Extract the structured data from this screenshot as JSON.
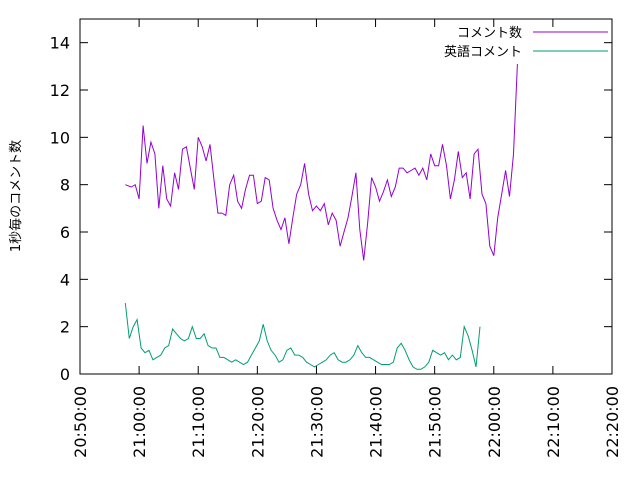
{
  "chart_data": {
    "type": "line",
    "title": "",
    "xlabel": "",
    "ylabel": "1秒毎のコメント数",
    "xlim": [
      "20:50:00",
      "22:20:00"
    ],
    "ylim": [
      0,
      15
    ],
    "x_ticks": [
      "20:50:00",
      "21:00:00",
      "21:10:00",
      "21:20:00",
      "21:30:00",
      "21:40:00",
      "21:50:00",
      "22:00:00",
      "22:10:00",
      "22:20:00"
    ],
    "y_ticks": [
      "0",
      "2",
      "4",
      "6",
      "8",
      "10",
      "12",
      "14"
    ],
    "grid": false,
    "legend_position": "top-right",
    "series": [
      {
        "name": "コメント数",
        "color": "#9400d3",
        "points": [
          [
            "20:57:40",
            8.0
          ],
          [
            "20:58:40",
            7.9
          ],
          [
            "20:59:20",
            8.0
          ],
          [
            "21:00:00",
            7.4
          ],
          [
            "21:00:40",
            10.5
          ],
          [
            "21:01:20",
            8.9
          ],
          [
            "21:02:00",
            9.8
          ],
          [
            "21:02:40",
            9.3
          ],
          [
            "21:03:20",
            7.0
          ],
          [
            "21:04:00",
            8.8
          ],
          [
            "21:04:40",
            7.4
          ],
          [
            "21:05:20",
            7.1
          ],
          [
            "21:06:00",
            8.5
          ],
          [
            "21:06:40",
            7.8
          ],
          [
            "21:07:20",
            9.5
          ],
          [
            "21:08:00",
            9.6
          ],
          [
            "21:08:40",
            8.7
          ],
          [
            "21:09:20",
            7.8
          ],
          [
            "21:10:00",
            10.0
          ],
          [
            "21:10:40",
            9.6
          ],
          [
            "21:11:20",
            9.0
          ],
          [
            "21:12:00",
            9.7
          ],
          [
            "21:12:40",
            8.2
          ],
          [
            "21:13:20",
            6.8
          ],
          [
            "21:14:00",
            6.8
          ],
          [
            "21:14:40",
            6.7
          ],
          [
            "21:15:20",
            8.0
          ],
          [
            "21:16:00",
            8.4
          ],
          [
            "21:16:40",
            7.3
          ],
          [
            "21:17:20",
            7.0
          ],
          [
            "21:18:00",
            7.8
          ],
          [
            "21:18:40",
            8.4
          ],
          [
            "21:19:20",
            8.4
          ],
          [
            "21:20:00",
            7.2
          ],
          [
            "21:20:40",
            7.3
          ],
          [
            "21:21:20",
            8.3
          ],
          [
            "21:22:00",
            8.2
          ],
          [
            "21:22:40",
            7.0
          ],
          [
            "21:23:20",
            6.5
          ],
          [
            "21:24:00",
            6.1
          ],
          [
            "21:24:40",
            6.6
          ],
          [
            "21:25:20",
            5.5
          ],
          [
            "21:26:00",
            6.6
          ],
          [
            "21:26:40",
            7.6
          ],
          [
            "21:27:20",
            8.0
          ],
          [
            "21:28:00",
            8.9
          ],
          [
            "21:28:40",
            7.6
          ],
          [
            "21:29:20",
            6.9
          ],
          [
            "21:30:00",
            7.1
          ],
          [
            "21:30:40",
            6.9
          ],
          [
            "21:31:20",
            7.2
          ],
          [
            "21:32:00",
            6.3
          ],
          [
            "21:32:40",
            6.8
          ],
          [
            "21:33:20",
            6.5
          ],
          [
            "21:34:00",
            5.4
          ],
          [
            "21:34:40",
            6.0
          ],
          [
            "21:35:20",
            6.6
          ],
          [
            "21:36:00",
            7.5
          ],
          [
            "21:36:40",
            8.5
          ],
          [
            "21:37:20",
            6.1
          ],
          [
            "21:38:00",
            4.8
          ],
          [
            "21:38:40",
            6.4
          ],
          [
            "21:39:20",
            8.3
          ],
          [
            "21:40:00",
            7.9
          ],
          [
            "21:40:40",
            7.3
          ],
          [
            "21:41:20",
            7.7
          ],
          [
            "21:42:00",
            8.2
          ],
          [
            "21:42:40",
            7.5
          ],
          [
            "21:43:20",
            7.9
          ],
          [
            "21:44:00",
            8.7
          ],
          [
            "21:44:40",
            8.7
          ],
          [
            "21:45:20",
            8.5
          ],
          [
            "21:46:00",
            8.6
          ],
          [
            "21:46:40",
            8.7
          ],
          [
            "21:47:20",
            8.4
          ],
          [
            "21:48:00",
            8.7
          ],
          [
            "21:48:40",
            8.2
          ],
          [
            "21:49:20",
            9.3
          ],
          [
            "21:50:00",
            8.8
          ],
          [
            "21:50:40",
            8.8
          ],
          [
            "21:51:20",
            9.7
          ],
          [
            "21:52:00",
            8.8
          ],
          [
            "21:52:40",
            7.4
          ],
          [
            "21:53:20",
            8.2
          ],
          [
            "21:54:00",
            9.4
          ],
          [
            "21:54:40",
            8.3
          ],
          [
            "21:55:20",
            8.5
          ],
          [
            "21:56:00",
            7.4
          ],
          [
            "21:56:40",
            9.3
          ],
          [
            "21:57:20",
            9.5
          ],
          [
            "21:58:00",
            7.6
          ],
          [
            "21:58:40",
            7.2
          ],
          [
            "21:59:20",
            5.4
          ],
          [
            "22:00:00",
            5.0
          ],
          [
            "22:00:40",
            6.6
          ],
          [
            "22:01:20",
            7.6
          ],
          [
            "22:02:00",
            8.6
          ],
          [
            "22:02:40",
            7.5
          ],
          [
            "22:03:20",
            9.3
          ],
          [
            "22:04:00",
            13.1
          ]
        ]
      },
      {
        "name": "英語コメント",
        "color": "#009e73",
        "points": [
          [
            "20:57:40",
            3.0
          ],
          [
            "20:58:20",
            1.5
          ],
          [
            "20:59:00",
            2.0
          ],
          [
            "20:59:40",
            2.3
          ],
          [
            "21:00:20",
            1.1
          ],
          [
            "21:01:00",
            0.9
          ],
          [
            "21:01:40",
            1.0
          ],
          [
            "21:02:20",
            0.6
          ],
          [
            "21:03:00",
            0.7
          ],
          [
            "21:03:40",
            0.8
          ],
          [
            "21:04:20",
            1.1
          ],
          [
            "21:05:00",
            1.2
          ],
          [
            "21:05:40",
            1.9
          ],
          [
            "21:06:20",
            1.7
          ],
          [
            "21:07:00",
            1.5
          ],
          [
            "21:07:40",
            1.4
          ],
          [
            "21:08:20",
            1.5
          ],
          [
            "21:09:00",
            2.0
          ],
          [
            "21:09:40",
            1.5
          ],
          [
            "21:10:20",
            1.5
          ],
          [
            "21:11:00",
            1.7
          ],
          [
            "21:11:40",
            1.2
          ],
          [
            "21:12:20",
            1.1
          ],
          [
            "21:13:00",
            1.1
          ],
          [
            "21:13:40",
            0.7
          ],
          [
            "21:14:20",
            0.7
          ],
          [
            "21:15:00",
            0.6
          ],
          [
            "21:15:40",
            0.5
          ],
          [
            "21:16:20",
            0.6
          ],
          [
            "21:17:00",
            0.5
          ],
          [
            "21:17:40",
            0.4
          ],
          [
            "21:18:20",
            0.5
          ],
          [
            "21:19:00",
            0.8
          ],
          [
            "21:19:40",
            1.1
          ],
          [
            "21:20:20",
            1.4
          ],
          [
            "21:21:00",
            2.1
          ],
          [
            "21:21:40",
            1.4
          ],
          [
            "21:22:20",
            1.0
          ],
          [
            "21:23:00",
            0.8
          ],
          [
            "21:23:40",
            0.5
          ],
          [
            "21:24:20",
            0.6
          ],
          [
            "21:25:00",
            1.0
          ],
          [
            "21:25:40",
            1.1
          ],
          [
            "21:26:20",
            0.8
          ],
          [
            "21:27:00",
            0.8
          ],
          [
            "21:27:40",
            0.7
          ],
          [
            "21:28:20",
            0.5
          ],
          [
            "21:29:00",
            0.4
          ],
          [
            "21:29:40",
            0.3
          ],
          [
            "21:30:20",
            0.4
          ],
          [
            "21:31:00",
            0.5
          ],
          [
            "21:31:40",
            0.6
          ],
          [
            "21:32:20",
            0.8
          ],
          [
            "21:33:00",
            0.9
          ],
          [
            "21:33:40",
            0.6
          ],
          [
            "21:34:20",
            0.5
          ],
          [
            "21:35:00",
            0.5
          ],
          [
            "21:35:40",
            0.6
          ],
          [
            "21:36:20",
            0.8
          ],
          [
            "21:37:00",
            1.2
          ],
          [
            "21:37:40",
            0.9
          ],
          [
            "21:38:20",
            0.7
          ],
          [
            "21:39:00",
            0.7
          ],
          [
            "21:39:40",
            0.6
          ],
          [
            "21:40:20",
            0.5
          ],
          [
            "21:41:00",
            0.4
          ],
          [
            "21:41:40",
            0.4
          ],
          [
            "21:42:20",
            0.4
          ],
          [
            "21:43:00",
            0.5
          ],
          [
            "21:43:40",
            1.1
          ],
          [
            "21:44:20",
            1.3
          ],
          [
            "21:45:00",
            1.0
          ],
          [
            "21:45:40",
            0.6
          ],
          [
            "21:46:20",
            0.3
          ],
          [
            "21:47:00",
            0.2
          ],
          [
            "21:47:40",
            0.2
          ],
          [
            "21:48:20",
            0.3
          ],
          [
            "21:49:00",
            0.5
          ],
          [
            "21:49:40",
            1.0
          ],
          [
            "21:50:20",
            0.9
          ],
          [
            "21:51:00",
            0.8
          ],
          [
            "21:51:40",
            0.9
          ],
          [
            "21:52:20",
            0.6
          ],
          [
            "21:53:00",
            0.8
          ],
          [
            "21:53:40",
            0.6
          ],
          [
            "21:54:20",
            0.7
          ],
          [
            "21:55:00",
            2.0
          ],
          [
            "21:55:40",
            1.6
          ],
          [
            "21:56:20",
            1.0
          ],
          [
            "21:57:00",
            0.3
          ],
          [
            "21:57:40",
            2.0
          ]
        ]
      }
    ]
  }
}
